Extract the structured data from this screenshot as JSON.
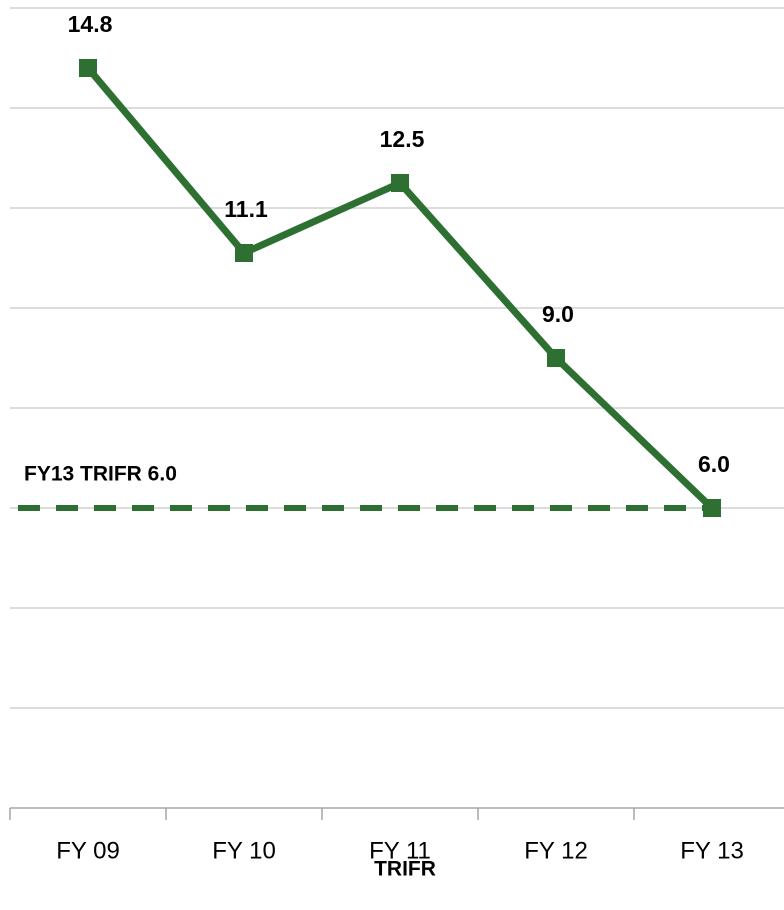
{
  "chart_data": {
    "type": "line",
    "categories": [
      "FY 09",
      "FY 10",
      "FY 11",
      "FY 12",
      "FY 13"
    ],
    "series": [
      {
        "name": "TRIFR",
        "color": "#2e7031",
        "values": [
          14.8,
          11.1,
          12.5,
          9.0,
          6.0
        ],
        "value_labels": [
          "14.8",
          "11.1",
          "12.5",
          "9.0",
          "6.0"
        ]
      }
    ],
    "xlabel": "TRIFR",
    "target": {
      "label": "FY13 TRIFR 6.0",
      "value": 6.0
    },
    "ylim": [
      0,
      16
    ],
    "yticks": [
      0,
      2,
      4,
      6,
      8,
      10,
      12,
      14,
      16
    ],
    "grid": true
  }
}
